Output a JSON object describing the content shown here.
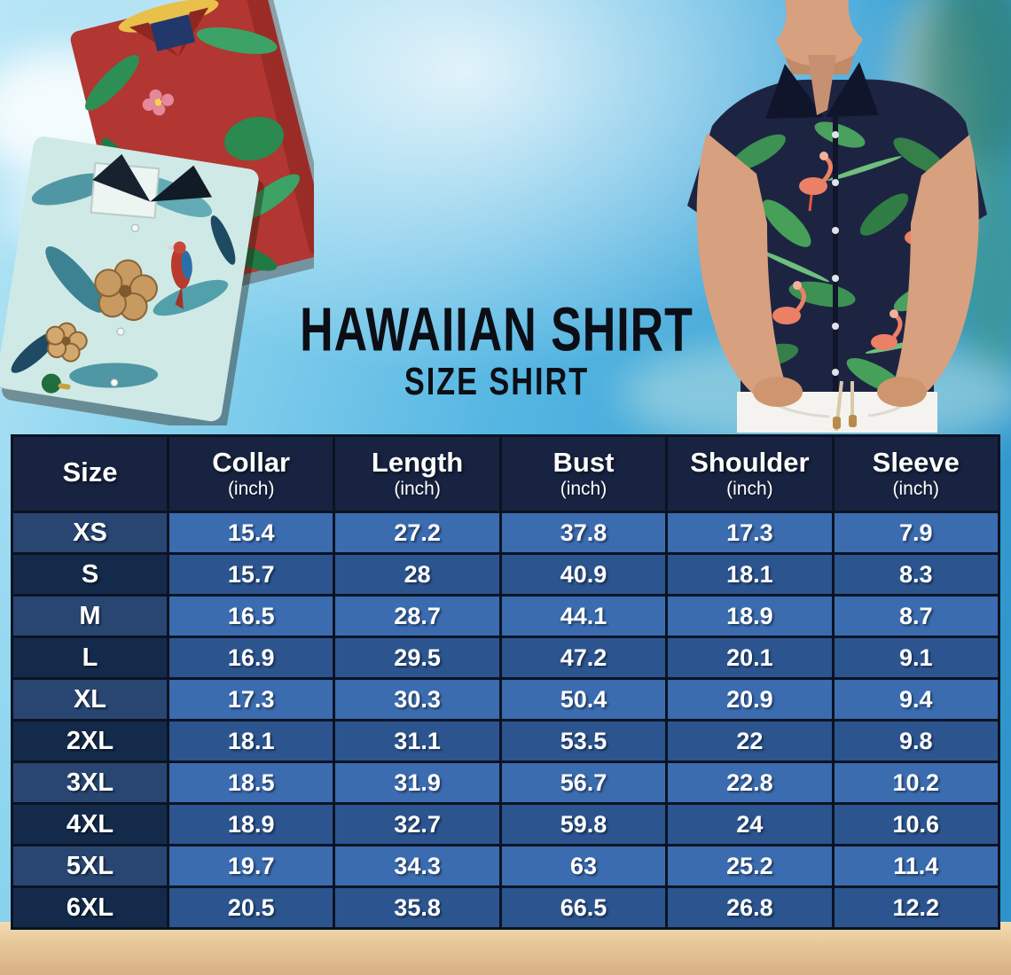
{
  "title": {
    "main": "HAWAIIAN SHIRT",
    "sub": "SIZE SHIRT"
  },
  "hero": {
    "left_photo_alt": "Two folded Hawaiian shirts: red shirt with green palm leaves and flowers stacked over a teal shirt with hibiscus flowers and parrots",
    "right_photo_alt": "Man wearing a navy Hawaiian shirt with pink flamingos and green tropical leaves, hands in white pants pockets"
  },
  "table": {
    "header": [
      {
        "label": "Size",
        "unit": ""
      },
      {
        "label": "Collar",
        "unit": "(inch)"
      },
      {
        "label": "Length",
        "unit": "(inch)"
      },
      {
        "label": "Bust",
        "unit": "(inch)"
      },
      {
        "label": "Shoulder",
        "unit": "(inch)"
      },
      {
        "label": "Sleeve",
        "unit": "(inch)"
      }
    ],
    "rows": [
      {
        "size": "XS",
        "values": [
          "15.4",
          "27.2",
          "37.8",
          "17.3",
          "7.9"
        ]
      },
      {
        "size": "S",
        "values": [
          "15.7",
          "28",
          "40.9",
          "18.1",
          "8.3"
        ]
      },
      {
        "size": "M",
        "values": [
          "16.5",
          "28.7",
          "44.1",
          "18.9",
          "8.7"
        ]
      },
      {
        "size": "L",
        "values": [
          "16.9",
          "29.5",
          "47.2",
          "20.1",
          "9.1"
        ]
      },
      {
        "size": "XL",
        "values": [
          "17.3",
          "30.3",
          "50.4",
          "20.9",
          "9.4"
        ]
      },
      {
        "size": "2XL",
        "values": [
          "18.1",
          "31.1",
          "53.5",
          "22",
          "9.8"
        ]
      },
      {
        "size": "3XL",
        "values": [
          "18.5",
          "31.9",
          "56.7",
          "22.8",
          "10.2"
        ]
      },
      {
        "size": "4XL",
        "values": [
          "18.9",
          "32.7",
          "59.8",
          "24",
          "10.6"
        ]
      },
      {
        "size": "5XL",
        "values": [
          "19.7",
          "34.3",
          "63",
          "25.2",
          "11.4"
        ]
      },
      {
        "size": "6XL",
        "values": [
          "20.5",
          "35.8",
          "66.5",
          "26.8",
          "12.2"
        ]
      }
    ]
  },
  "chart_data": {
    "type": "table",
    "title": "HAWAIIAN SHIRT — SIZE SHIRT",
    "columns": [
      "Size",
      "Collar (inch)",
      "Length (inch)",
      "Bust (inch)",
      "Shoulder (inch)",
      "Sleeve (inch)"
    ],
    "rows": [
      [
        "XS",
        "15.4",
        "27.2",
        "37.8",
        "17.3",
        "7.9"
      ],
      [
        "S",
        "15.7",
        "28",
        "40.9",
        "18.1",
        "8.3"
      ],
      [
        "M",
        "16.5",
        "28.7",
        "44.1",
        "18.9",
        "8.7"
      ],
      [
        "L",
        "16.9",
        "29.5",
        "47.2",
        "20.1",
        "9.1"
      ],
      [
        "XL",
        "17.3",
        "30.3",
        "50.4",
        "20.9",
        "9.4"
      ],
      [
        "2XL",
        "18.1",
        "31.1",
        "53.5",
        "22",
        "9.8"
      ],
      [
        "3XL",
        "18.5",
        "31.9",
        "56.7",
        "22.8",
        "10.2"
      ],
      [
        "4XL",
        "18.9",
        "32.7",
        "59.8",
        "24",
        "10.6"
      ],
      [
        "5XL",
        "19.7",
        "34.3",
        "63",
        "25.2",
        "11.4"
      ],
      [
        "6XL",
        "20.5",
        "35.8",
        "66.5",
        "26.8",
        "12.2"
      ]
    ]
  },
  "colors": {
    "header_bg": "#172340",
    "row_blue_light": "#3b6cb0",
    "row_blue_dark": "#2c5590",
    "size_col_light": "#294672",
    "size_col_dark": "#142a4b",
    "table_border": "#0b1322",
    "table_text": "#ffffff",
    "title_text": "#0b0e14",
    "sky_blue": "#3aa0d4",
    "sand": "#e6c697"
  }
}
